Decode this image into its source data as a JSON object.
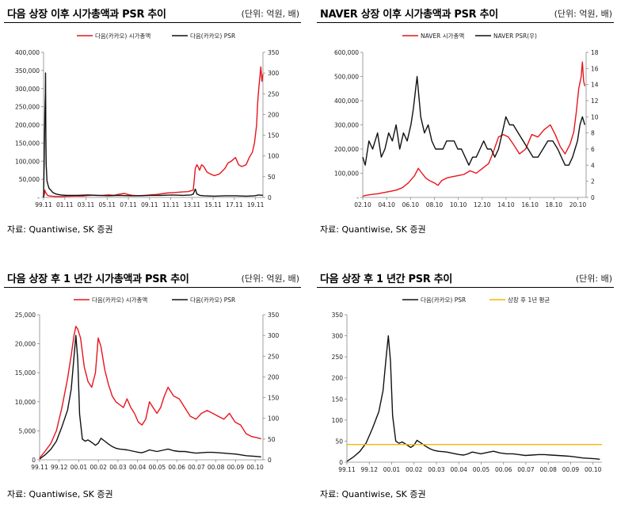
{
  "chart_data": [
    {
      "type": "line",
      "title": "다음 상장 이후 시가총액과 PSR 추이",
      "unit": "(단위: 억원, 배)",
      "source": "자료: Quantiwise, SK 증권",
      "x_ticks": [
        "99.11",
        "01.11",
        "03.11",
        "05.11",
        "07.11",
        "09.11",
        "11.11",
        "13.11",
        "15.11",
        "17.11",
        "19.11"
      ],
      "x_range": [
        1999.83,
        2020.6
      ],
      "y_left": {
        "ticks": [
          "-",
          "50,000",
          "100,000",
          "150,000",
          "200,000",
          "250,000",
          "300,000",
          "350,000",
          "400,000"
        ],
        "range": [
          0,
          400000
        ]
      },
      "y_right": {
        "ticks": [
          "0",
          "50",
          "100",
          "150",
          "200",
          "250",
          "300",
          "350"
        ],
        "range": [
          0,
          350
        ]
      },
      "series": [
        {
          "name": "다음(카카오) 시가총액",
          "axis": "left",
          "color": "#e8141c",
          "x": [
            1999.83,
            1999.9,
            1999.95,
            2000.0,
            2000.1,
            2000.2,
            2000.4,
            2000.7,
            2001.0,
            2001.5,
            2002.0,
            2002.5,
            2003.0,
            2003.5,
            2004.0,
            2004.5,
            2005.0,
            2005.5,
            2006.0,
            2006.5,
            2007.0,
            2007.5,
            2007.8,
            2008.2,
            2008.6,
            2009.0,
            2009.5,
            2010.0,
            2010.5,
            2011.0,
            2011.5,
            2012.0,
            2012.5,
            2013.0,
            2013.5,
            2014.0,
            2014.2,
            2014.35,
            2014.45,
            2014.6,
            2014.8,
            2015.0,
            2015.3,
            2015.6,
            2016.0,
            2016.5,
            2017.0,
            2017.3,
            2017.6,
            2018.0,
            2018.3,
            2018.6,
            2019.0,
            2019.3,
            2019.6,
            2019.8,
            2020.0,
            2020.1,
            2020.2,
            2020.3,
            2020.4,
            2020.5,
            2020.6
          ],
          "y": [
            1000,
            8000,
            20000,
            15000,
            10000,
            6000,
            4000,
            3000,
            2500,
            2500,
            3000,
            3500,
            4000,
            3500,
            5000,
            6000,
            5000,
            6000,
            7000,
            6000,
            9000,
            11000,
            8000,
            6000,
            5000,
            5000,
            6000,
            7000,
            8000,
            10000,
            12000,
            13000,
            14000,
            15000,
            16000,
            20000,
            80000,
            90000,
            85000,
            75000,
            90000,
            85000,
            70000,
            65000,
            60000,
            65000,
            80000,
            95000,
            100000,
            110000,
            90000,
            85000,
            90000,
            110000,
            125000,
            150000,
            200000,
            260000,
            300000,
            330000,
            360000,
            320000,
            340000
          ]
        },
        {
          "name": "다음(카카오) PSR",
          "axis": "right",
          "color": "#111111",
          "x": [
            1999.83,
            1999.9,
            1999.95,
            2000.0,
            2000.02,
            2000.05,
            2000.08,
            2000.15,
            2000.25,
            2000.35,
            2000.5,
            2000.7,
            2001.0,
            2001.5,
            2002.0,
            2003.0,
            2004.0,
            2005.0,
            2006.0,
            2007.0,
            2008.0,
            2009.0,
            2010.0,
            2011.0,
            2012.0,
            2013.0,
            2013.8,
            2014.0,
            2014.2,
            2014.35,
            2014.45,
            2014.6,
            2015.0,
            2016.0,
            2017.0,
            2018.0,
            2019.0,
            2019.8,
            2020.2,
            2020.6
          ],
          "y": [
            0,
            100,
            200,
            250,
            300,
            150,
            80,
            40,
            30,
            22,
            18,
            12,
            8,
            6,
            5,
            5,
            6,
            5,
            4,
            5,
            4,
            4,
            5,
            5,
            6,
            5,
            6,
            8,
            20,
            8,
            7,
            5,
            4,
            3,
            4,
            4,
            3,
            4,
            6,
            5
          ]
        }
      ]
    },
    {
      "type": "line",
      "title": "NAVER 상장 이후 시가총액과 PSR 추이",
      "unit": "(단위: 억원, 배)",
      "source": "자료: Quantiwise, SK 증권",
      "x_ticks": [
        "02.10",
        "04.10",
        "06.10",
        "08.10",
        "10.10",
        "12.10",
        "14.10",
        "16.10",
        "18.10",
        "20.10"
      ],
      "x_range": [
        2002.8,
        2020.9
      ],
      "y_left": {
        "ticks": [
          "-",
          "100,000",
          "200,000",
          "300,000",
          "400,000",
          "500,000",
          "600,000"
        ],
        "range": [
          0,
          600000
        ]
      },
      "y_right": {
        "ticks": [
          "0",
          "2",
          "4",
          "6",
          "8",
          "10",
          "12",
          "14",
          "16",
          "18"
        ],
        "range": [
          0,
          18
        ]
      },
      "series": [
        {
          "name": "NAVER 시가총액",
          "axis": "left",
          "color": "#e8141c",
          "x": [
            2002.8,
            2003.0,
            2003.5,
            2004.0,
            2004.5,
            2005.0,
            2005.5,
            2006.0,
            2006.5,
            2007.0,
            2007.3,
            2007.6,
            2007.9,
            2008.2,
            2008.6,
            2008.9,
            2009.2,
            2009.6,
            2010.0,
            2010.5,
            2011.0,
            2011.5,
            2012.0,
            2012.5,
            2013.0,
            2013.4,
            2013.8,
            2014.2,
            2014.6,
            2015.0,
            2015.5,
            2016.0,
            2016.5,
            2017.0,
            2017.5,
            2018.0,
            2018.4,
            2018.8,
            2019.2,
            2019.6,
            2019.9,
            2020.1,
            2020.3,
            2020.5,
            2020.6,
            2020.7,
            2020.8
          ],
          "y": [
            5000,
            8000,
            12000,
            15000,
            20000,
            25000,
            30000,
            40000,
            60000,
            90000,
            120000,
            100000,
            80000,
            70000,
            60000,
            50000,
            70000,
            80000,
            85000,
            90000,
            95000,
            110000,
            100000,
            120000,
            140000,
            190000,
            250000,
            260000,
            250000,
            220000,
            180000,
            200000,
            260000,
            250000,
            280000,
            300000,
            260000,
            210000,
            180000,
            220000,
            270000,
            350000,
            450000,
            500000,
            560000,
            480000,
            460000
          ]
        },
        {
          "name": "NAVER PSR(우)",
          "axis": "right",
          "color": "#111111",
          "x": [
            2002.8,
            2003.0,
            2003.3,
            2003.6,
            2004.0,
            2004.3,
            2004.6,
            2004.9,
            2005.2,
            2005.5,
            2005.8,
            2006.1,
            2006.4,
            2006.7,
            2006.9,
            2007.2,
            2007.5,
            2007.8,
            2008.1,
            2008.4,
            2008.7,
            2009.0,
            2009.3,
            2009.6,
            2009.9,
            2010.2,
            2010.5,
            2010.8,
            2011.1,
            2011.4,
            2011.7,
            2012.0,
            2012.3,
            2012.6,
            2012.9,
            2013.2,
            2013.5,
            2013.8,
            2014.1,
            2014.4,
            2014.7,
            2015.0,
            2015.4,
            2015.8,
            2016.2,
            2016.6,
            2017.0,
            2017.4,
            2017.8,
            2018.2,
            2018.6,
            2018.9,
            2019.2,
            2019.5,
            2019.8,
            2020.0,
            2020.2,
            2020.4,
            2020.6,
            2020.8
          ],
          "y": [
            5,
            4,
            7,
            6,
            8,
            5,
            6,
            8,
            7,
            9,
            6,
            8,
            7,
            9,
            11,
            15,
            10,
            8,
            9,
            7,
            6,
            6,
            6,
            7,
            7,
            7,
            6,
            6,
            5,
            4,
            5,
            5,
            6,
            7,
            6,
            6,
            5,
            6,
            8,
            10,
            9,
            9,
            8,
            7,
            6,
            5,
            5,
            6,
            7,
            7,
            6,
            5,
            4,
            4,
            5,
            6,
            7,
            9,
            10,
            9
          ]
        }
      ]
    },
    {
      "type": "line",
      "title": "다음 상장 후 1 년간 시가총액과 PSR 추이",
      "unit": "(단위: 억원, 배)",
      "source": "자료: Quantiwise, SK 증권",
      "x_ticks": [
        "99.11",
        "99.12",
        "00.01",
        "00.02",
        "00.03",
        "00.04",
        "00.05",
        "00.06",
        "00.07",
        "00.08",
        "00.09",
        "00.10"
      ],
      "x_range": [
        0,
        12
      ],
      "y_left": {
        "ticks": [
          "0",
          "5,000",
          "10,000",
          "15,000",
          "20,000",
          "25,000"
        ],
        "range": [
          0,
          25000
        ]
      },
      "y_right": {
        "ticks": [
          "0",
          "50",
          "100",
          "150",
          "200",
          "250",
          "300",
          "350"
        ],
        "range": [
          0,
          350
        ]
      },
      "series": [
        {
          "name": "다음(카카오) 시가총액",
          "axis": "left",
          "color": "#e8141c",
          "x": [
            0,
            0.3,
            0.6,
            0.9,
            1.2,
            1.5,
            1.7,
            1.85,
            1.95,
            2.05,
            2.2,
            2.4,
            2.6,
            2.8,
            3.0,
            3.15,
            3.3,
            3.5,
            3.7,
            3.9,
            4.1,
            4.3,
            4.5,
            4.7,
            4.9,
            5.1,
            5.3,
            5.5,
            5.7,
            5.9,
            6.1,
            6.3,
            6.5,
            6.7,
            6.9,
            7.2,
            7.5,
            7.8,
            8.1,
            8.4,
            8.7,
            9.0,
            9.3,
            9.6,
            9.9,
            10.2,
            10.5,
            10.8,
            11.1,
            11.4,
            11.7,
            11.9
          ],
          "y": [
            300,
            1500,
            2800,
            5000,
            9000,
            14000,
            18000,
            21500,
            23000,
            22500,
            21000,
            16000,
            13500,
            12500,
            15000,
            21000,
            19500,
            15500,
            13000,
            11000,
            10000,
            9500,
            9000,
            10500,
            9000,
            8000,
            6500,
            6000,
            7000,
            10000,
            9000,
            8000,
            9000,
            11000,
            12500,
            11000,
            10500,
            9000,
            7500,
            7000,
            8000,
            8500,
            8000,
            7500,
            7000,
            8000,
            6500,
            6000,
            4500,
            4000,
            3800,
            3600
          ]
        },
        {
          "name": "다음(카카오) PSR",
          "axis": "right",
          "color": "#111111",
          "x": [
            0,
            0.3,
            0.6,
            0.9,
            1.2,
            1.5,
            1.7,
            1.85,
            1.95,
            2.05,
            2.15,
            2.3,
            2.45,
            2.6,
            2.8,
            3.0,
            3.15,
            3.3,
            3.5,
            3.7,
            3.9,
            4.1,
            4.3,
            4.5,
            4.7,
            4.9,
            5.1,
            5.3,
            5.5,
            5.7,
            5.9,
            6.1,
            6.3,
            6.5,
            6.7,
            6.9,
            7.2,
            7.5,
            7.8,
            8.1,
            8.4,
            8.7,
            9.0,
            9.3,
            9.6,
            9.9,
            10.2,
            10.5,
            10.8,
            11.1,
            11.4,
            11.7,
            11.9
          ],
          "y": [
            2,
            12,
            25,
            45,
            80,
            120,
            170,
            250,
            300,
            240,
            110,
            50,
            45,
            48,
            42,
            35,
            40,
            52,
            45,
            38,
            32,
            28,
            26,
            25,
            24,
            22,
            20,
            18,
            17,
            20,
            24,
            22,
            20,
            22,
            24,
            26,
            22,
            20,
            20,
            18,
            16,
            17,
            18,
            18,
            17,
            16,
            15,
            14,
            12,
            10,
            9,
            8,
            7
          ]
        }
      ]
    },
    {
      "type": "line",
      "title": "다음 상장 후 1 년간 PSR 추이",
      "unit": "(단위: 배)",
      "source": "자료: Quantiwise, SK 증권",
      "x_ticks": [
        "99.11",
        "99.12",
        "00.01",
        "00.02",
        "00.03",
        "00.04",
        "00.05",
        "00.06",
        "00.07",
        "00.08",
        "00.09",
        "00.10"
      ],
      "x_range": [
        0,
        12
      ],
      "y_left": {
        "ticks": [
          "0",
          "50",
          "100",
          "150",
          "200",
          "250",
          "300",
          "350"
        ],
        "range": [
          0,
          350
        ]
      },
      "series": [
        {
          "name": "다음(카카오) PSR",
          "axis": "left",
          "color": "#111111",
          "x": [
            0,
            0.3,
            0.6,
            0.9,
            1.2,
            1.5,
            1.7,
            1.85,
            1.95,
            2.05,
            2.15,
            2.3,
            2.45,
            2.6,
            2.8,
            3.0,
            3.15,
            3.3,
            3.5,
            3.7,
            3.9,
            4.1,
            4.3,
            4.5,
            4.7,
            4.9,
            5.1,
            5.3,
            5.5,
            5.7,
            5.9,
            6.1,
            6.3,
            6.5,
            6.7,
            6.9,
            7.2,
            7.5,
            7.8,
            8.1,
            8.4,
            8.7,
            9.0,
            9.3,
            9.6,
            9.9,
            10.2,
            10.5,
            10.8,
            11.1,
            11.4,
            11.7,
            11.9
          ],
          "y": [
            2,
            12,
            25,
            45,
            80,
            120,
            170,
            250,
            300,
            240,
            110,
            50,
            45,
            48,
            42,
            35,
            40,
            52,
            45,
            38,
            32,
            28,
            26,
            25,
            24,
            22,
            20,
            18,
            17,
            20,
            24,
            22,
            20,
            22,
            24,
            26,
            22,
            20,
            20,
            18,
            16,
            17,
            18,
            18,
            17,
            16,
            15,
            14,
            12,
            10,
            9,
            8,
            7
          ]
        },
        {
          "name": "상장 후 1년 평균",
          "axis": "left",
          "color": "#f2b705",
          "x": [
            0,
            12
          ],
          "y": [
            42,
            42
          ]
        }
      ]
    }
  ]
}
